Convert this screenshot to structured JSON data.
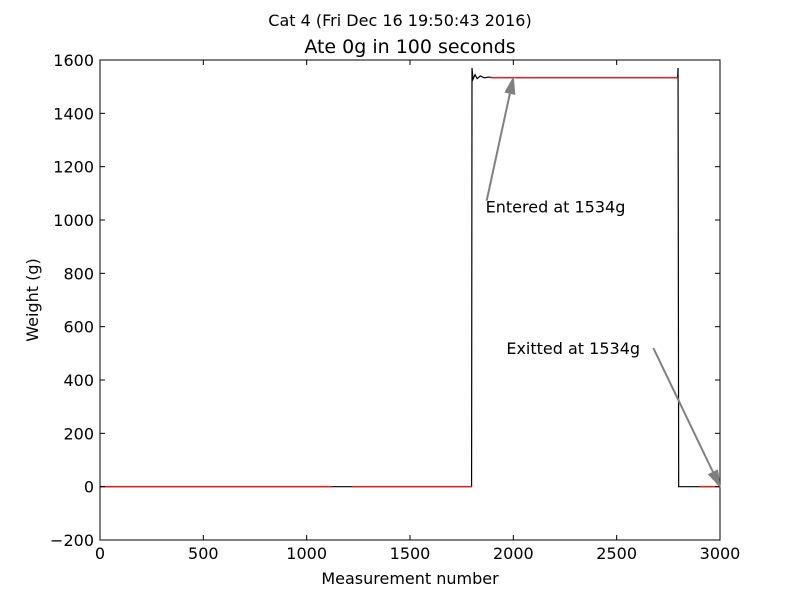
{
  "chart_data": {
    "type": "line",
    "suptitle": "Cat 4 (Fri Dec 16 19:50:43 2016)",
    "title": "Ate 0g in 100 seconds",
    "xlabel": "Measurement number",
    "ylabel": "Weight (g)",
    "xlim": [
      0,
      3000
    ],
    "ylim": [
      -200,
      1600
    ],
    "xticks": [
      0,
      500,
      1000,
      1500,
      2000,
      2500,
      3000
    ],
    "yticks": [
      -200,
      0,
      200,
      400,
      600,
      800,
      1000,
      1200,
      1400,
      1600
    ],
    "grid": false,
    "series": [
      {
        "color": "#000000",
        "points": [
          [
            0,
            0
          ],
          [
            1798,
            0
          ],
          [
            1800,
            1570
          ],
          [
            1805,
            1528
          ],
          [
            1815,
            1545
          ],
          [
            1825,
            1530
          ],
          [
            1840,
            1540
          ],
          [
            1860,
            1533
          ],
          [
            1880,
            1536
          ],
          [
            1900,
            1534
          ],
          [
            2795,
            1534
          ],
          [
            2797,
            1570
          ],
          [
            2800,
            0
          ],
          [
            3000,
            0
          ]
        ]
      },
      {
        "color": "#d62728",
        "segments": [
          [
            [
              0,
              0
            ],
            [
              1120,
              0
            ]
          ],
          [
            [
              1220,
              0
            ],
            [
              1800,
              0
            ]
          ],
          [
            [
              1890,
              1534
            ],
            [
              2795,
              1534
            ]
          ],
          [
            [
              2900,
              0
            ],
            [
              3000,
              0
            ]
          ]
        ]
      }
    ],
    "annotations": [
      {
        "text": "Entered at 1534g",
        "xy": [
          2000,
          1534
        ],
        "xytext": [
          1900,
          1020
        ]
      },
      {
        "text": "Exitted at 1534g",
        "xy": [
          3000,
          0
        ],
        "xytext": [
          2000,
          490
        ]
      }
    ]
  }
}
